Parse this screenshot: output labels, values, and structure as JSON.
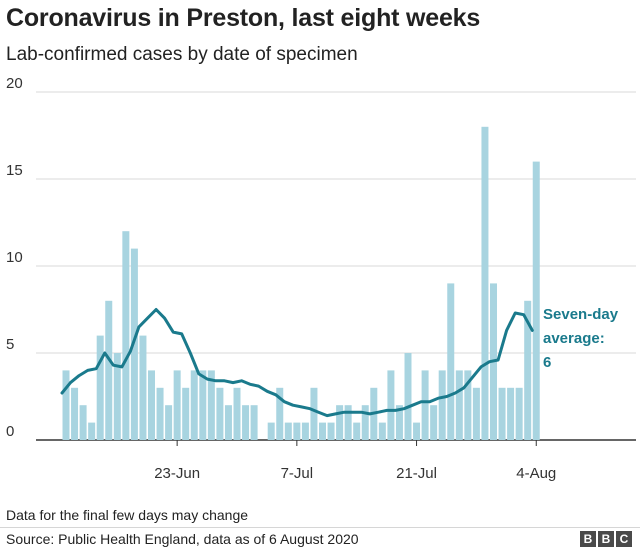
{
  "header": {
    "title": "Coronavirus in Preston, last eight weeks",
    "subtitle": "Lab-confirmed cases by date of specimen"
  },
  "annotation": {
    "line1": "Seven-day",
    "line2": "average:",
    "line3": "6"
  },
  "footer": {
    "note": "Data for the final few days may change",
    "source": "Source: Public Health England, data as of 6 August 2020",
    "logo": [
      "B",
      "B",
      "C"
    ]
  },
  "colors": {
    "bar": "#a8d4e0",
    "line": "#1a7a8c",
    "grid": "#d9d9d9",
    "axis": "#333333",
    "annotation": "#1a7a8c"
  },
  "chart_data": {
    "type": "bar",
    "title": "Coronavirus in Preston, last eight weeks",
    "subtitle": "Lab-confirmed cases by date of specimen",
    "ylim": [
      0,
      20
    ],
    "yticks": [
      0,
      5,
      10,
      15,
      20
    ],
    "xticks": [
      "23-Jun",
      "7-Jul",
      "21-Jul",
      "4-Aug"
    ],
    "grid": true,
    "series": [
      {
        "values": [
          4,
          3,
          2,
          1,
          6,
          8,
          5,
          12,
          11,
          6,
          4,
          3,
          2,
          4,
          3,
          4,
          4,
          4,
          3,
          2,
          3,
          2,
          2,
          0,
          1,
          3,
          1,
          1,
          1,
          3,
          1,
          1,
          2,
          2,
          1,
          2,
          3,
          1,
          4,
          2,
          5,
          1,
          4,
          2,
          4,
          9,
          4,
          4,
          3,
          18,
          9,
          3,
          3,
          3,
          8,
          16
        ]
      },
      {
        "values": [
          2.7,
          3.3,
          3.7,
          4.0,
          4.1,
          5.0,
          4.3,
          4.2,
          5.1,
          6.5,
          7.0,
          7.5,
          7.0,
          6.2,
          6.1,
          5.0,
          3.8,
          3.5,
          3.4,
          3.4,
          3.3,
          3.4,
          3.2,
          3.1,
          2.8,
          2.6,
          2.2,
          2.0,
          1.9,
          1.8,
          1.6,
          1.4,
          1.5,
          1.6,
          1.6,
          1.6,
          1.5,
          1.6,
          1.7,
          1.7,
          1.8,
          2.0,
          2.2,
          2.2,
          2.4,
          2.5,
          2.7,
          3.0,
          3.6,
          4.2,
          4.5,
          4.6,
          6.3,
          7.3,
          7.2,
          6.3
        ]
      }
    ]
  }
}
